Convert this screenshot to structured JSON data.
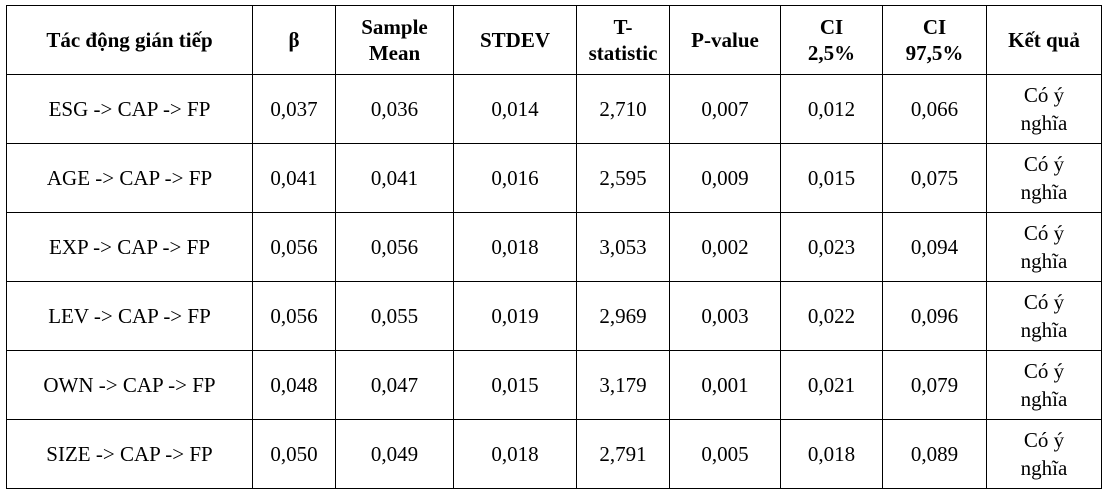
{
  "table": {
    "headers": [
      "Tác động gián tiếp",
      "β",
      "Sample Mean",
      "STDEV",
      "T-statistic",
      "P-value",
      "CI 2,5%",
      "CI 97,5%",
      "Kết quả"
    ],
    "header_lines": [
      [
        "Tác động gián tiếp"
      ],
      [
        "β"
      ],
      [
        "Sample",
        "Mean"
      ],
      [
        "STDEV"
      ],
      [
        "T-",
        "statistic"
      ],
      [
        "P-value"
      ],
      [
        "CI",
        "2,5%"
      ],
      [
        "CI",
        "97,5%"
      ],
      [
        "Kết quả"
      ]
    ],
    "rows": [
      [
        "ESG -> CAP -> FP",
        "0,037",
        "0,036",
        "0,014",
        "2,710",
        "0,007",
        "0,012",
        "0,066",
        "Có ý nghĩa"
      ],
      [
        "AGE -> CAP -> FP",
        "0,041",
        "0,041",
        "0,016",
        "2,595",
        "0,009",
        "0,015",
        "0,075",
        "Có ý nghĩa"
      ],
      [
        "EXP -> CAP -> FP",
        "0,056",
        "0,056",
        "0,018",
        "3,053",
        "0,002",
        "0,023",
        "0,094",
        "Có ý nghĩa"
      ],
      [
        "LEV -> CAP -> FP",
        "0,056",
        "0,055",
        "0,019",
        "2,969",
        "0,003",
        "0,022",
        "0,096",
        "Có ý nghĩa"
      ],
      [
        "OWN -> CAP -> FP",
        "0,048",
        "0,047",
        "0,015",
        "3,179",
        "0,001",
        "0,021",
        "0,079",
        "Có ý nghĩa"
      ],
      [
        "SIZE -> CAP -> FP",
        "0,050",
        "0,049",
        "0,018",
        "2,791",
        "0,005",
        "0,018",
        "0,089",
        "Có ý nghĩa"
      ]
    ],
    "result_lines": [
      "Có ý",
      "nghĩa"
    ]
  }
}
